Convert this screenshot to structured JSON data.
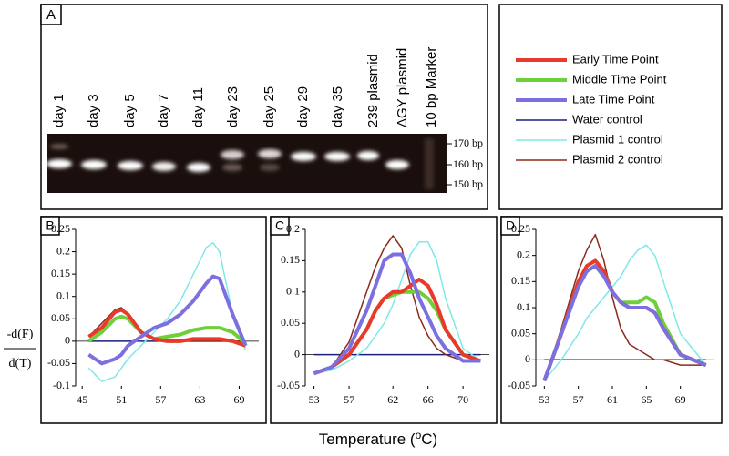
{
  "gel": {
    "label": "A",
    "lanes": [
      "day 1",
      "day 3",
      "day 5",
      "day 7",
      "day 11",
      "day 23",
      "day 25",
      "day 29",
      "day 35",
      "239 plasmid",
      "ΔGY plasmid",
      "10 bp Marker"
    ],
    "markers": [
      "170 bp",
      "160 bp",
      "150 bp"
    ]
  },
  "y_label_top": "-d(F)",
  "y_label_bottom": "d(T)",
  "x_label_prefix": "Temperature (",
  "x_label_super": "o",
  "x_label_suffix": "C)",
  "chart_data": [
    {
      "type": "line",
      "label": "B",
      "xlim": [
        44,
        72
      ],
      "xticks": [
        45,
        51,
        57,
        63,
        69
      ],
      "ylim": [
        -0.1,
        0.25
      ],
      "yticks": [
        -0.1,
        -0.05,
        0,
        0.05,
        0.1,
        0.15,
        0.2,
        0.25
      ],
      "x": [
        46,
        48,
        50,
        51,
        52,
        54,
        56,
        58,
        60,
        62,
        64,
        65,
        66,
        68,
        70
      ],
      "series": [
        {
          "name": "Early Time Point",
          "color": "#e8392a",
          "width": 4,
          "values": [
            0.01,
            0.03,
            0.065,
            0.07,
            0.06,
            0.02,
            0.005,
            0,
            0,
            0.005,
            0.005,
            0.005,
            0.005,
            0,
            -0.01
          ]
        },
        {
          "name": "Middle Time Point",
          "color": "#6fcf3a",
          "width": 4,
          "values": [
            0,
            0.02,
            0.05,
            0.055,
            0.05,
            0.02,
            0.005,
            0.01,
            0.015,
            0.025,
            0.03,
            0.03,
            0.03,
            0.02,
            -0.005
          ]
        },
        {
          "name": "Late Time Point",
          "color": "#7c6fe0",
          "width": 4,
          "values": [
            -0.03,
            -0.05,
            -0.04,
            -0.03,
            -0.01,
            0.01,
            0.03,
            0.04,
            0.06,
            0.09,
            0.13,
            0.145,
            0.14,
            0.06,
            -0.01
          ]
        },
        {
          "name": "Water control",
          "color": "#1a1f7a",
          "width": 1.5,
          "values": [
            0,
            0,
            0,
            0,
            0,
            0,
            0,
            0,
            0,
            0,
            0,
            0,
            0,
            0,
            0
          ]
        },
        {
          "name": "Plasmid 1 control",
          "color": "#7fe8e8",
          "width": 1.5,
          "values": [
            -0.06,
            -0.09,
            -0.08,
            -0.06,
            -0.04,
            -0.01,
            0.02,
            0.05,
            0.09,
            0.15,
            0.21,
            0.22,
            0.2,
            0.06,
            -0.02
          ]
        },
        {
          "name": "Plasmid 2 control",
          "color": "#8b2a1c",
          "width": 1.5,
          "values": [
            0.01,
            0.04,
            0.07,
            0.075,
            0.06,
            0.02,
            0.005,
            0,
            0,
            0,
            0,
            0,
            0,
            0,
            0
          ]
        }
      ]
    },
    {
      "type": "line",
      "label": "C",
      "xlim": [
        52,
        73
      ],
      "xticks": [
        53,
        57,
        62,
        66,
        70
      ],
      "ylim": [
        -0.05,
        0.2
      ],
      "yticks": [
        -0.05,
        0,
        0.05,
        0.1,
        0.15,
        0.2
      ],
      "x": [
        53,
        55,
        57,
        59,
        60,
        61,
        62,
        63,
        64,
        65,
        66,
        67,
        68,
        70,
        72
      ],
      "series": [
        {
          "name": "Early Time Point",
          "color": "#e8392a",
          "width": 4,
          "values": [
            -0.03,
            -0.02,
            0,
            0.04,
            0.07,
            0.09,
            0.1,
            0.1,
            0.11,
            0.12,
            0.11,
            0.08,
            0.04,
            0,
            -0.01
          ]
        },
        {
          "name": "Middle Time Point",
          "color": "#6fcf3a",
          "width": 4,
          "values": [
            -0.03,
            -0.02,
            0,
            0.04,
            0.07,
            0.09,
            0.095,
            0.1,
            0.1,
            0.1,
            0.09,
            0.07,
            0.04,
            0,
            -0.01
          ]
        },
        {
          "name": "Late Time Point",
          "color": "#7c6fe0",
          "width": 4,
          "values": [
            -0.03,
            -0.02,
            0.01,
            0.07,
            0.11,
            0.15,
            0.16,
            0.16,
            0.13,
            0.09,
            0.06,
            0.03,
            0.01,
            -0.01,
            -0.01
          ]
        },
        {
          "name": "Water control",
          "color": "#1a1f7a",
          "width": 1.5,
          "values": [
            0,
            0,
            0,
            0,
            0,
            0,
            0,
            0,
            0,
            0,
            0,
            0,
            0,
            0,
            0
          ]
        },
        {
          "name": "Plasmid 1 control",
          "color": "#7fe8e8",
          "width": 1.5,
          "values": [
            -0.03,
            -0.025,
            -0.01,
            0.01,
            0.03,
            0.05,
            0.08,
            0.12,
            0.16,
            0.18,
            0.18,
            0.15,
            0.09,
            0.01,
            -0.01
          ]
        },
        {
          "name": "Plasmid 2 control",
          "color": "#8b2a1c",
          "width": 1.5,
          "values": [
            -0.03,
            -0.02,
            0.02,
            0.1,
            0.14,
            0.17,
            0.19,
            0.17,
            0.11,
            0.06,
            0.03,
            0.01,
            0,
            -0.01,
            -0.01
          ]
        }
      ]
    },
    {
      "type": "line",
      "label": "D",
      "xlim": [
        52,
        73
      ],
      "xticks": [
        53,
        57,
        61,
        65,
        69
      ],
      "ylim": [
        -0.05,
        0.25
      ],
      "yticks": [
        -0.05,
        0,
        0.05,
        0.1,
        0.15,
        0.2,
        0.25
      ],
      "x": [
        53,
        55,
        57,
        58,
        59,
        60,
        61,
        62,
        63,
        64,
        65,
        66,
        67,
        69,
        72
      ],
      "series": [
        {
          "name": "Early Time Point",
          "color": "#e8392a",
          "width": 4,
          "values": [
            -0.04,
            0.05,
            0.15,
            0.18,
            0.19,
            0.17,
            0.13,
            0.11,
            0.1,
            0.1,
            0.1,
            0.09,
            0.06,
            0.01,
            -0.01
          ]
        },
        {
          "name": "Middle Time Point",
          "color": "#6fcf3a",
          "width": 4,
          "values": [
            -0.04,
            0.05,
            0.15,
            0.17,
            0.18,
            0.17,
            0.13,
            0.11,
            0.11,
            0.11,
            0.12,
            0.11,
            0.07,
            0.01,
            -0.01
          ]
        },
        {
          "name": "Late Time Point",
          "color": "#7c6fe0",
          "width": 4,
          "values": [
            -0.04,
            0.05,
            0.14,
            0.17,
            0.18,
            0.16,
            0.13,
            0.11,
            0.1,
            0.1,
            0.1,
            0.09,
            0.06,
            0.01,
            -0.01
          ]
        },
        {
          "name": "Water control",
          "color": "#1a1f7a",
          "width": 1.5,
          "values": [
            0,
            0,
            0,
            0,
            0,
            0,
            0,
            0,
            0,
            0,
            0,
            0,
            0,
            0,
            0
          ]
        },
        {
          "name": "Plasmid 1 control",
          "color": "#7fe8e8",
          "width": 1.5,
          "values": [
            -0.04,
            0,
            0.05,
            0.08,
            0.1,
            0.12,
            0.14,
            0.16,
            0.19,
            0.21,
            0.22,
            0.2,
            0.15,
            0.05,
            -0.01
          ]
        },
        {
          "name": "Plasmid 2 control",
          "color": "#8b2a1c",
          "width": 1.5,
          "values": [
            -0.04,
            0.06,
            0.17,
            0.21,
            0.24,
            0.19,
            0.12,
            0.06,
            0.03,
            0.02,
            0.01,
            0,
            0,
            -0.01,
            -0.01
          ]
        }
      ]
    }
  ]
}
